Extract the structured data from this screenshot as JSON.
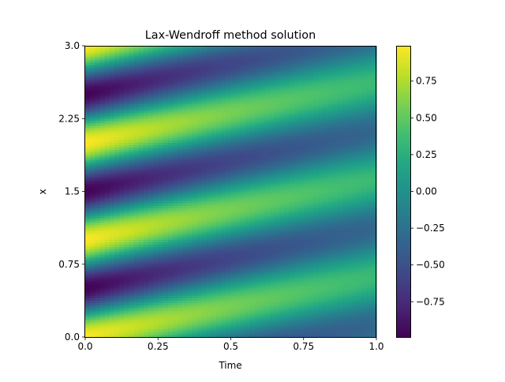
{
  "chart_data": {
    "type": "heatmap",
    "title": "Lax-Wendroff method solution",
    "xlabel": "Time",
    "ylabel": "x",
    "xlim": [
      0,
      1
    ],
    "ylim": [
      3.0,
      0.0
    ],
    "xticks": [
      0.0,
      0.25,
      0.5,
      0.75,
      1.0
    ],
    "xtick_labels": [
      "0.0",
      "0.25",
      "0.5",
      "0.75",
      "1.0"
    ],
    "yticks": [
      0.0,
      0.75,
      1.5,
      2.25,
      3.0
    ],
    "ytick_labels": [
      "0.0",
      "0.75",
      "1.5",
      "2.25",
      "3.0"
    ],
    "colorbar": {
      "colormap": "viridis",
      "range": [
        -0.99,
        0.99
      ],
      "ticks": [
        -0.75,
        -0.5,
        -0.25,
        0.0,
        0.25,
        0.5,
        0.75
      ],
      "tick_labels": [
        "−0.75",
        "−0.50",
        "−0.25",
        "0.00",
        "0.25",
        "0.50",
        "0.75"
      ],
      "placement": "right"
    },
    "field": {
      "description": "u(x,t) ≈ A(t)·sin(2π·(x − c·t) + 0.5π)",
      "wavelength_x": 1.0,
      "wave_speed": 0.62,
      "amplitude_at_t0": 0.99,
      "amplitude_at_t1": 0.34
    }
  }
}
